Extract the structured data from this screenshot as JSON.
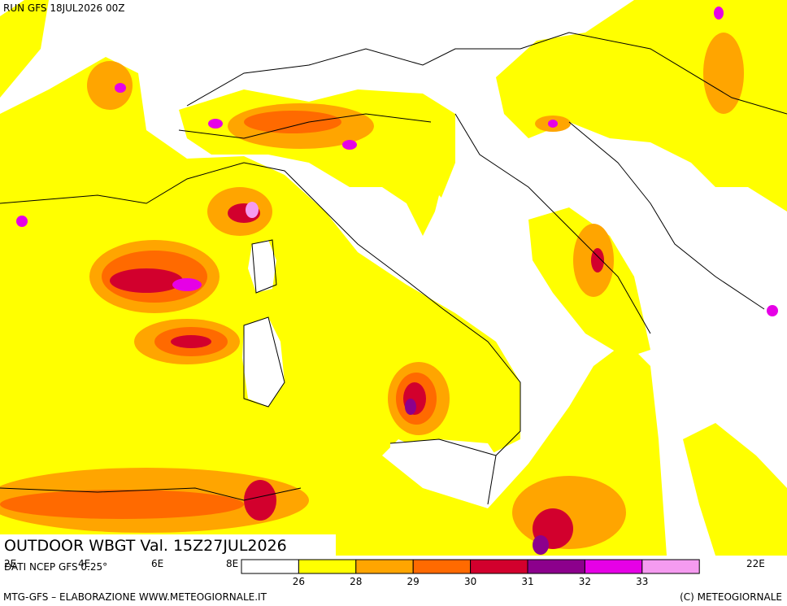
{
  "header": {
    "run": "RUN GFS 18JUL2026 00Z"
  },
  "title": "OUTDOOR WBGT Val. 15Z27JUL2026",
  "source": "DATI NCEP GFS 0.25°",
  "longitudes": [
    "2E",
    "4E",
    "6E",
    "8E",
    "22E"
  ],
  "legend": {
    "levels": [
      26,
      28,
      29,
      30,
      31,
      32,
      33
    ],
    "colors": [
      "#ffffff",
      "#ffff00",
      "#ffa500",
      "#ff6a00",
      "#d2002d",
      "#8c008c",
      "#e600e6",
      "#f59bf0"
    ]
  },
  "footer": {
    "left": "MTG-GFS – ELABORAZIONE WWW.METEOGIORNALE.IT",
    "right": "(C) METEOGIORNALE"
  }
}
